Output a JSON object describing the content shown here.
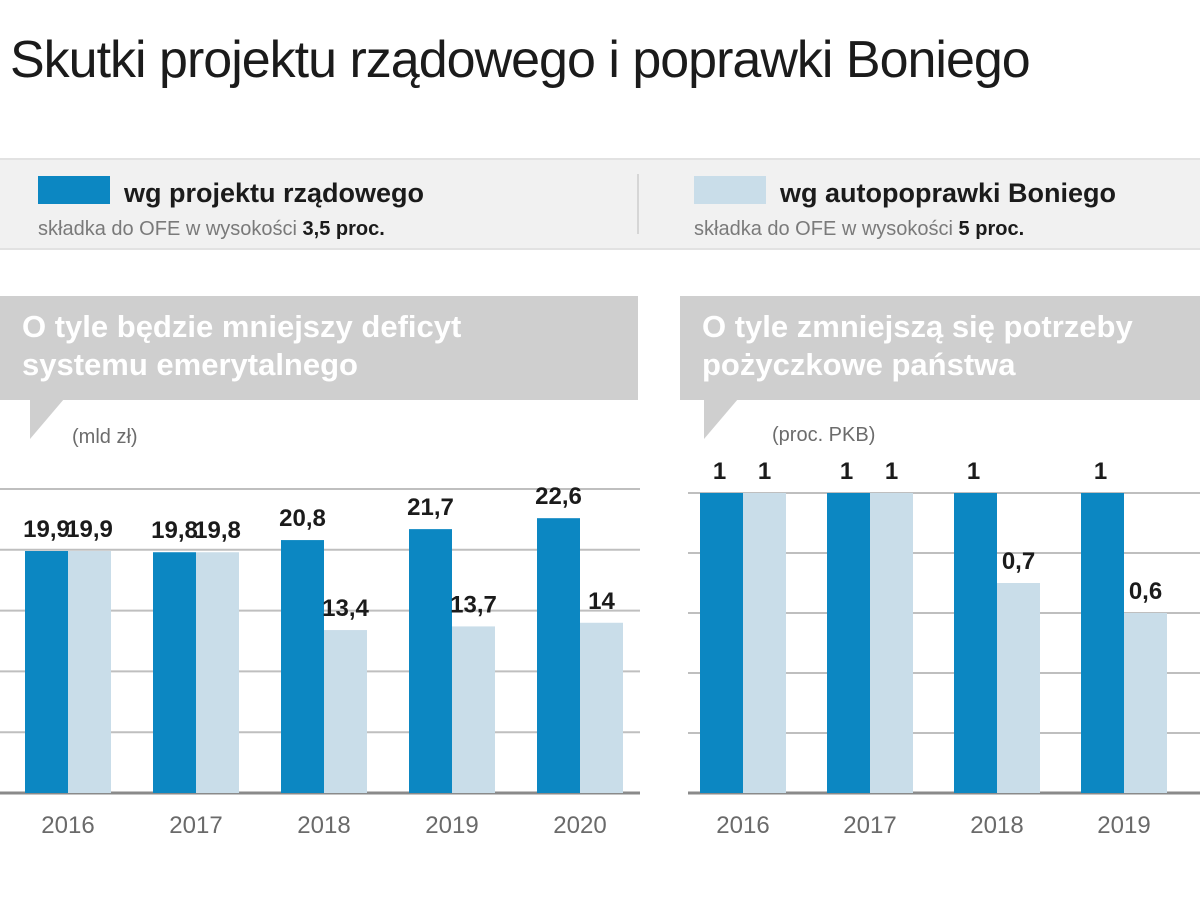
{
  "title": "Skutki projektu rządowego i poprawki Boniego",
  "colors": {
    "government": "#0c87c2",
    "boni": "#c9dde9",
    "grid": "#bfbfbf",
    "bubble": "#cfcfcf"
  },
  "legend": {
    "government": {
      "label": "wg projektu rządowego",
      "sub_text": "składka do OFE w wysokości",
      "sub_value": "3,5 proc."
    },
    "boni": {
      "label": "wg autopoprawki Boniego",
      "sub_text": "składka do OFE w wysokości",
      "sub_value": "5 proc."
    }
  },
  "panels": [
    {
      "heading_line1": "O tyle będzie mniejszy deficyt",
      "heading_line2": "systemu emerytalnego",
      "unit": "(mld zł)"
    },
    {
      "heading_line1": "O tyle zmniejszą się potrzeby",
      "heading_line2": "pożyczkowe państwa",
      "unit": "(proc. PKB)"
    }
  ],
  "chart_data": [
    {
      "type": "bar",
      "title": "O tyle będzie mniejszy deficyt systemu emerytalnego",
      "ylabel": "(mld zł)",
      "categories": [
        "2016",
        "2017",
        "2018",
        "2019",
        "2020"
      ],
      "series": [
        {
          "name": "wg projektu rządowego",
          "values": [
            19.9,
            19.8,
            20.8,
            21.7,
            22.6
          ],
          "labels": [
            "19,9",
            "19,8",
            "20,8",
            "21,7",
            "22,6"
          ]
        },
        {
          "name": "wg autopoprawki Boniego",
          "values": [
            19.9,
            19.8,
            13.4,
            13.7,
            14
          ],
          "labels": [
            "19,9",
            "19,8",
            "13,4",
            "13,7",
            "14"
          ]
        }
      ],
      "ylim": [
        0,
        25
      ],
      "grid": true
    },
    {
      "type": "bar",
      "title": "O tyle zmniejszą się potrzeby pożyczkowe państwa",
      "ylabel": "(proc. PKB)",
      "categories": [
        "2016",
        "2017",
        "2018",
        "2019"
      ],
      "series": [
        {
          "name": "wg projektu rządowego",
          "values": [
            1,
            1,
            1,
            1
          ],
          "labels": [
            "1",
            "1",
            "1",
            "1"
          ]
        },
        {
          "name": "wg autopoprawki Boniego",
          "values": [
            1,
            1,
            0.7,
            0.6
          ],
          "labels": [
            "1",
            "1",
            "0,7",
            "0,6"
          ]
        }
      ],
      "ylim": [
        0,
        1
      ],
      "grid": true
    }
  ]
}
